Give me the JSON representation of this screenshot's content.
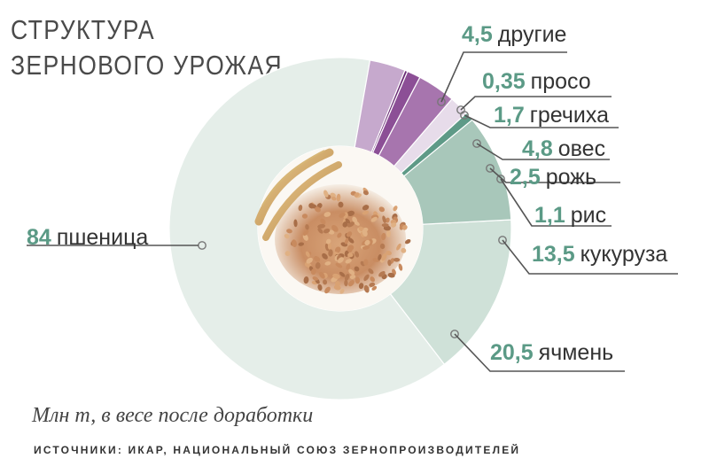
{
  "title": "СТРУКТУРА ЗЕРНОВОГО УРОЖАЯ",
  "footnote": "Млн т, в весе после доработки",
  "sources": "ИСТОЧНИКИ: ИКАР, НАЦИОНАЛЬНЫЙ СОЮЗ ЗЕРНОПРОИЗВОДИТЕЛЕЙ",
  "center_image": "wheat-grain-photo-icon",
  "chart_data": {
    "type": "pie",
    "variant": "donut",
    "title": "СТРУКТУРА ЗЕРНОВОГО УРОЖАЯ",
    "unit_note": "Млн т, в весе после доработки",
    "slices": [
      {
        "value": 84,
        "label_value": "84",
        "label": "пшеница",
        "color": "#e5eee9"
      },
      {
        "value": 20.5,
        "label_value": "20,5",
        "label": "ячмень",
        "color": "#cfe1d8"
      },
      {
        "value": 13.5,
        "label_value": "13,5",
        "label": "кукуруза",
        "color": "#a8c7ba"
      },
      {
        "value": 1.1,
        "label_value": "1,1",
        "label": "рис",
        "color": "#5e9a87"
      },
      {
        "value": 2.5,
        "label_value": "2,5",
        "label": "рожь",
        "color": "#e7dcea"
      },
      {
        "value": 4.8,
        "label_value": "4,8",
        "label": "овес",
        "color": "#a775ae"
      },
      {
        "value": 1.7,
        "label_value": "1,7",
        "label": "гречиха",
        "color": "#8c4f96"
      },
      {
        "value": 0.35,
        "label_value": "0,35",
        "label": "просо",
        "color": "#6a2c75"
      },
      {
        "value": 4.5,
        "label_value": "4,5",
        "label": "другие",
        "color": "#c6a9cd"
      }
    ],
    "accent_value_color": "#5b9a86",
    "leader_line_color": "#555555",
    "legend": "none"
  }
}
